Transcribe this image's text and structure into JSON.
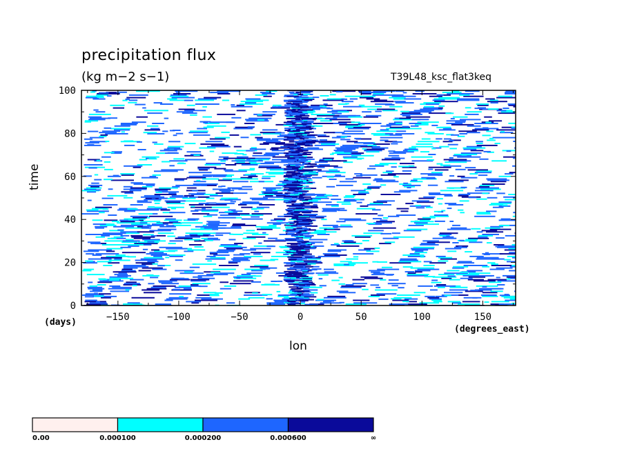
{
  "chart_data": {
    "type": "heatmap",
    "title": "precipitation flux",
    "units": "(kg m−2 s−1)",
    "run_id": "T39L48_ksc_flat3keq",
    "xlabel": "lon",
    "xunits": "(degrees_east)",
    "ylabel": "time",
    "yunits": "(days)",
    "xlim": [
      -180,
      177
    ],
    "ylim": [
      0,
      100
    ],
    "xticks": [
      -150,
      -100,
      -50,
      0,
      50,
      100,
      150
    ],
    "xtick_labels": [
      "−150",
      "−100",
      "−50",
      "0",
      "50",
      "100",
      "150"
    ],
    "yticks": [
      0,
      20,
      40,
      60,
      80,
      100
    ],
    "ytick_labels": [
      "0",
      "20",
      "40",
      "60",
      "80",
      "100"
    ],
    "colorbar": {
      "levels": [
        "0.00",
        "0.000100",
        "0.000200",
        "0.000600",
        "∞"
      ],
      "colors": [
        "#fff0ee",
        "#00ffff",
        "#1e66ff",
        "#0a0a9a"
      ]
    }
  }
}
